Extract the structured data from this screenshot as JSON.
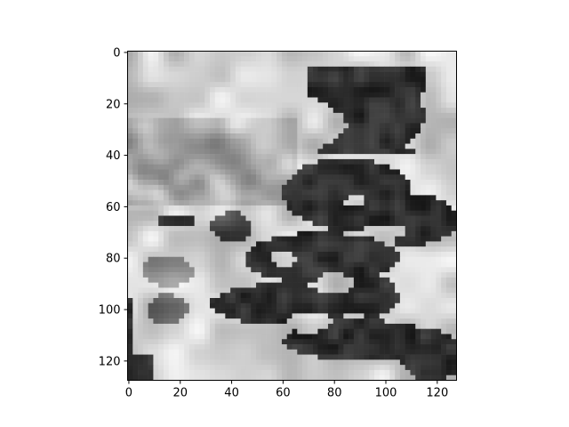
{
  "chart_data": {
    "type": "heatmap",
    "colormap": "gray",
    "origin": "upper",
    "title": "",
    "xlabel": "",
    "ylabel": "",
    "xlim": [
      0,
      127
    ],
    "ylim": [
      127,
      0
    ],
    "x_ticks": [
      0,
      20,
      40,
      60,
      80,
      100,
      120
    ],
    "y_ticks": [
      0,
      20,
      40,
      60,
      80,
      100,
      120
    ],
    "grid": false,
    "colorbar": false,
    "description_regions": [
      {
        "name": "light-background",
        "level": 0.85
      },
      {
        "name": "dark-tree-shape",
        "level": 0.12
      },
      {
        "name": "gray-mottle",
        "level": 0.6
      }
    ]
  },
  "colors": {
    "background": "#ffffff",
    "axis": "#000000",
    "dark": "#151515",
    "light": "#e8e8e8"
  }
}
